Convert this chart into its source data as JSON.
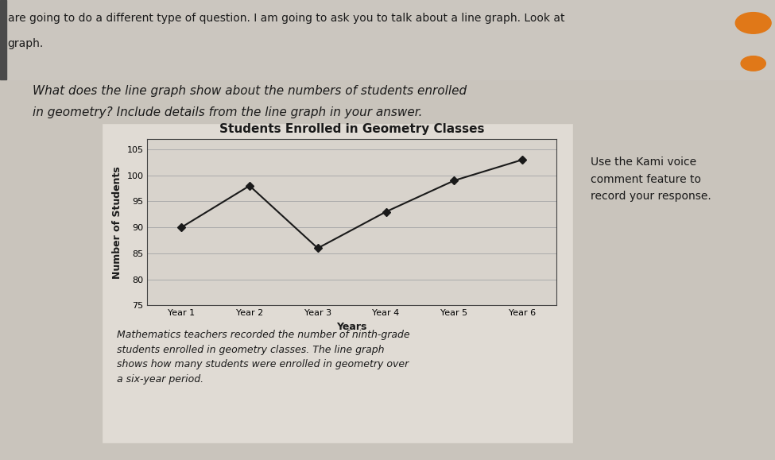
{
  "title": "Students Enrolled in Geometry Classes",
  "xlabel": "Years",
  "ylabel": "Number of Students",
  "years": [
    "Year 1",
    "Year 2",
    "Year 3",
    "Year 4",
    "Year 5",
    "Year 6"
  ],
  "values": [
    90,
    98,
    86,
    93,
    99,
    103
  ],
  "ylim": [
    75,
    107
  ],
  "yticks": [
    75,
    80,
    85,
    90,
    95,
    100,
    105
  ],
  "line_color": "#1a1a1a",
  "marker": "D",
  "marker_color": "#1a1a1a",
  "marker_size": 5,
  "line_width": 1.5,
  "page_bg": "#c9c4bc",
  "header_bg": "#cac5be",
  "chart_box_bg": "#e0dbd4",
  "chart_inner_bg": "#d8d3cc",
  "title_fontsize": 11,
  "axis_label_fontsize": 9,
  "tick_fontsize": 8,
  "header_text_line1": "are going to do a different type of question. I am going to ask you to talk about a line graph. Look at",
  "header_text_line2": "graph.",
  "question_line1": "What does the line graph show about the numbers of students enrolled",
  "question_line2": "in geometry? Include details from the line graph in your answer.",
  "side_text": "Use the Kami voice\ncomment feature to\nrecord your response.",
  "footer_text": "Mathematics teachers recorded the number of ninth-grade\nstudents enrolled in geometry classes. The line graph\nshows how many students were enrolled in geometry over\na six-year period.",
  "orange_dot_color": "#e07818",
  "header_fontsize": 10,
  "question_fontsize": 11,
  "footer_fontsize": 9,
  "side_fontsize": 10
}
